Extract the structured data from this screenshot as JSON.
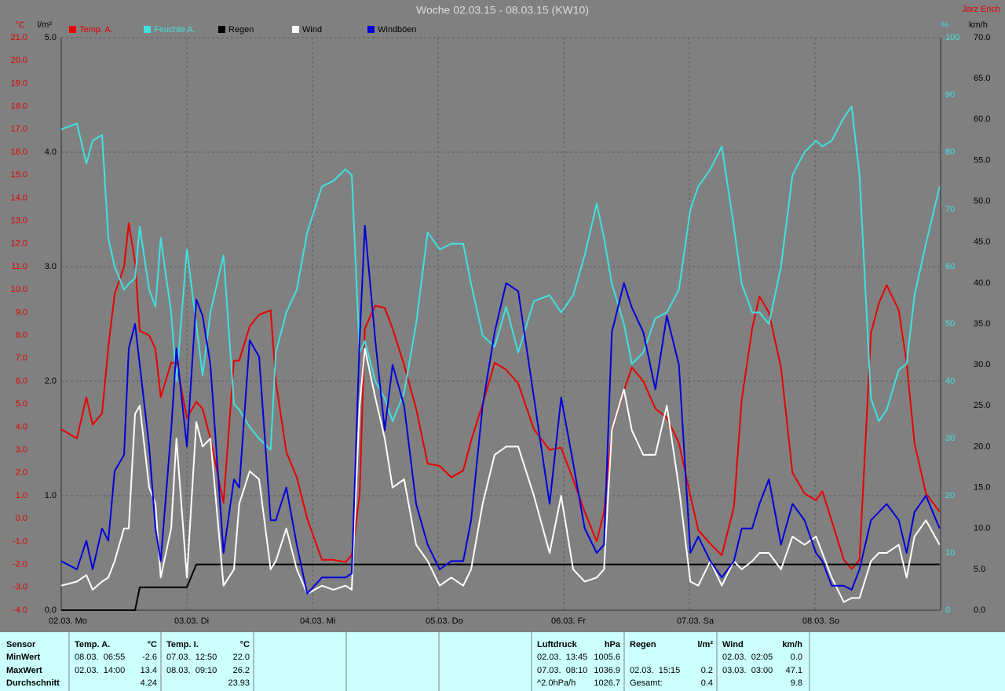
{
  "chart_data": {
    "type": "line",
    "title": "Woche 02.03.15 - 08.03.15 (KW10)",
    "annotation": "Jarz Erich",
    "ylabel": "°C",
    "y2label": "km/h",
    "y3label": "%",
    "y4label": "l/m²",
    "grid": true,
    "xlim": [
      0,
      168
    ],
    "xticks": [
      {
        "value": 0,
        "label": "02.03. Mo"
      },
      {
        "value": 24,
        "label": "03.03. Di"
      },
      {
        "value": 48,
        "label": "04.03. Mi"
      },
      {
        "value": 72,
        "label": "05.03. Do"
      },
      {
        "value": 96,
        "label": "06.03. Fr"
      },
      {
        "value": 120,
        "label": "07.03. Sa"
      },
      {
        "value": 144,
        "label": "08.03. So"
      }
    ],
    "ylim": [
      -4,
      21
    ],
    "yticks": [
      {
        "value": -4,
        "label": "-4.0"
      },
      {
        "value": -3,
        "label": "-3.0"
      },
      {
        "value": -2,
        "label": "-2.0"
      },
      {
        "value": -1,
        "label": "-1.0"
      },
      {
        "value": 0,
        "label": "0.0"
      },
      {
        "value": 1,
        "label": "1.0"
      },
      {
        "value": 2,
        "label": "2.0"
      },
      {
        "value": 3,
        "label": "3.0"
      },
      {
        "value": 4,
        "label": "4.0"
      },
      {
        "value": 5,
        "label": "5.0"
      },
      {
        "value": 6,
        "label": "6.0"
      },
      {
        "value": 7,
        "label": "7.0"
      },
      {
        "value": 8,
        "label": "8.0"
      },
      {
        "value": 9,
        "label": "9.0"
      },
      {
        "value": 10,
        "label": "10.0"
      },
      {
        "value": 11,
        "label": "11.0"
      },
      {
        "value": 12,
        "label": "12.0"
      },
      {
        "value": 13,
        "label": "13.0"
      },
      {
        "value": 14,
        "label": "14.0"
      },
      {
        "value": 15,
        "label": "15.0"
      },
      {
        "value": 16,
        "label": "16.0"
      },
      {
        "value": 17,
        "label": "17.0"
      },
      {
        "value": 18,
        "label": "18.0"
      },
      {
        "value": 19,
        "label": "19.0"
      },
      {
        "value": 20,
        "label": "20.0"
      },
      {
        "value": 21,
        "label": "21.0"
      }
    ],
    "y4lim": [
      0,
      5
    ],
    "y4ticks": [
      {
        "value": 0,
        "label": "0.0"
      },
      {
        "value": 1,
        "label": "1.0"
      },
      {
        "value": 2,
        "label": "2.0"
      },
      {
        "value": 3,
        "label": "3.0"
      },
      {
        "value": 4,
        "label": "4.0"
      },
      {
        "value": 5,
        "label": "5.0"
      }
    ],
    "y3lim": [
      0,
      100
    ],
    "y3ticks": [
      0,
      10,
      20,
      30,
      40,
      50,
      60,
      70,
      80,
      90,
      100
    ],
    "y2lim": [
      0,
      70
    ],
    "y2ticks": [
      {
        "value": 0,
        "label": "0.0"
      },
      {
        "value": 5,
        "label": "5.0"
      },
      {
        "value": 10,
        "label": "10.0"
      },
      {
        "value": 15,
        "label": "15.0"
      },
      {
        "value": 20,
        "label": "20.0"
      },
      {
        "value": 25,
        "label": "25.0"
      },
      {
        "value": 30,
        "label": "30.0"
      },
      {
        "value": 35,
        "label": "35.0"
      },
      {
        "value": 40,
        "label": "40.0"
      },
      {
        "value": 45,
        "label": "45.0"
      },
      {
        "value": 50,
        "label": "50.0"
      },
      {
        "value": 55,
        "label": "55.0"
      },
      {
        "value": 60,
        "label": "60.0"
      },
      {
        "value": 65,
        "label": "65.0"
      },
      {
        "value": 70,
        "label": "70.0"
      }
    ],
    "x": [
      0,
      3,
      4.8,
      6,
      7.8,
      9,
      10.2,
      12,
      12.9,
      14.1,
      15,
      16.8,
      18,
      19,
      21,
      22,
      24,
      25.8,
      27,
      28.5,
      31,
      33,
      34,
      36,
      37.8,
      40,
      41,
      43,
      45,
      47,
      49.8,
      52,
      54.3,
      55.5,
      57,
      58,
      60,
      61.8,
      63.3,
      65.5,
      67.8,
      70,
      72.3,
      74.5,
      76.8,
      78.3,
      80.5,
      82.8,
      85,
      87.3,
      90.3,
      93.3,
      95.5,
      97.8,
      100,
      102.3,
      103.7,
      105.2,
      107.5,
      109,
      111.2,
      113.5,
      115.7,
      118,
      120.2,
      121.7,
      124,
      126.2,
      128.5,
      130,
      132,
      133.4,
      135.2,
      137.5,
      139.7,
      142,
      144.2,
      145.4,
      147.2,
      149.5,
      151,
      152.5,
      154.7,
      156.2,
      157.7,
      160,
      161.5,
      163,
      165.2,
      167.8
    ],
    "series": [
      {
        "name": "Temp. A.",
        "color": "#e80000",
        "axis": "y",
        "values": [
          3.9,
          3.5,
          5.3,
          4.1,
          4.6,
          7.5,
          9.8,
          11,
          12.9,
          11.2,
          8.2,
          8,
          7.4,
          5.3,
          6.8,
          6.8,
          4.4,
          5.1,
          4.8,
          3.5,
          0.7,
          6.9,
          6.9,
          8.4,
          8.9,
          9.1,
          6,
          2.9,
          1.8,
          0,
          -1.8,
          -1.8,
          -1.9,
          -1.6,
          1,
          8.3,
          9.3,
          9.2,
          8.3,
          6.7,
          4.8,
          2.4,
          2.3,
          1.8,
          2.1,
          3.4,
          5,
          6.8,
          6.5,
          5.9,
          3.9,
          3,
          3.1,
          1.7,
          0.3,
          -1,
          0.3,
          3.8,
          5.6,
          6.6,
          6,
          4.8,
          4.4,
          3.3,
          1,
          -0.5,
          -1.1,
          -1.6,
          0.5,
          5.2,
          8.3,
          9.7,
          9,
          6.6,
          2,
          1.1,
          0.8,
          1.2,
          -0.1,
          -1.8,
          -2.2,
          -1.8,
          8.1,
          9.4,
          10.2,
          9.1,
          6.8,
          3.3,
          1.1,
          0.3
        ]
      },
      {
        "name": "Feuchte A.",
        "color": "#40e0e0",
        "axis": "y3",
        "values": [
          84,
          85,
          78,
          82,
          83,
          65,
          60,
          56,
          57,
          58,
          67,
          56,
          53,
          65,
          52,
          40,
          63,
          50,
          41,
          52,
          62,
          36,
          35,
          32,
          30,
          28,
          45,
          52,
          56,
          66,
          74,
          75,
          77,
          76,
          45,
          47,
          40,
          37,
          33,
          38,
          50,
          66,
          63,
          64,
          64,
          57,
          48,
          46,
          53,
          45,
          54,
          55,
          52,
          55,
          62,
          71,
          65,
          57,
          50,
          43,
          45,
          51,
          52,
          56,
          70,
          74,
          77,
          81,
          67,
          57,
          52,
          52,
          50,
          60,
          76,
          80,
          82,
          81,
          82,
          86,
          88,
          76,
          37,
          33,
          35,
          42,
          43,
          55,
          64,
          74
        ]
      },
      {
        "name": "Regen",
        "color": "#000000",
        "axis": "y4",
        "values": [
          0,
          0,
          0,
          0,
          0,
          0,
          0,
          0,
          0,
          0,
          0.2,
          0.2,
          0.2,
          0.2,
          0.2,
          0.2,
          0.2,
          0.4,
          0.4,
          0.4,
          0.4,
          0.4,
          0.4,
          0.4,
          0.4,
          0.4,
          0.4,
          0.4,
          0.4,
          0.4,
          0.4,
          0.4,
          0.4,
          0.4,
          0.4,
          0.4,
          0.4,
          0.4,
          0.4,
          0.4,
          0.4,
          0.4,
          0.4,
          0.4,
          0.4,
          0.4,
          0.4,
          0.4,
          0.4,
          0.4,
          0.4,
          0.4,
          0.4,
          0.4,
          0.4,
          0.4,
          0.4,
          0.4,
          0.4,
          0.4,
          0.4,
          0.4,
          0.4,
          0.4,
          0.4,
          0.4,
          0.4,
          0.4,
          0.4,
          0.4,
          0.4,
          0.4,
          0.4,
          0.4,
          0.4,
          0.4,
          0.4,
          0.4,
          0.4,
          0.4,
          0.4,
          0.4,
          0.4,
          0.4,
          0.4,
          0.4,
          0.4,
          0.4,
          0.4,
          0.4
        ]
      },
      {
        "name": "Wind",
        "color": "#ffffff",
        "axis": "y2",
        "values": [
          3,
          3.5,
          4.3,
          2.5,
          3.5,
          4,
          6,
          10,
          10,
          24,
          25,
          15,
          13,
          4,
          10,
          21,
          4,
          23,
          20,
          21,
          3,
          5,
          13,
          17,
          16,
          5,
          6,
          10,
          5,
          2,
          3,
          2.5,
          3,
          2.5,
          25,
          32,
          26,
          21,
          15,
          16,
          8,
          6,
          3,
          4,
          3,
          5,
          13,
          19,
          20,
          20,
          14,
          7,
          14,
          5,
          3.5,
          4,
          5,
          22,
          27,
          22,
          19,
          19,
          25,
          15,
          3.5,
          3,
          6,
          3,
          6,
          5,
          6,
          7,
          7,
          5,
          9,
          8,
          9,
          7,
          4,
          1,
          1.5,
          1.5,
          6,
          7,
          7,
          8,
          4,
          9,
          11,
          8
        ]
      },
      {
        "name": "Windböen",
        "color": "#0000dd",
        "axis": "y2",
        "values": [
          6,
          5,
          8.5,
          5,
          10,
          8.5,
          17,
          19,
          32,
          35,
          30,
          20,
          10,
          6,
          22,
          32,
          20,
          38,
          36,
          30,
          7,
          16,
          15,
          33,
          31,
          11,
          11,
          15,
          8,
          2,
          4,
          4,
          4,
          4.5,
          33,
          47,
          33,
          22,
          30,
          25,
          13,
          8,
          5,
          6,
          6,
          11,
          25,
          34,
          40,
          39,
          26,
          13,
          26,
          18,
          10,
          7,
          8,
          34,
          40,
          37,
          34,
          27,
          36,
          30,
          7,
          9,
          6,
          4,
          6,
          10,
          10,
          13,
          16,
          8,
          13,
          11,
          7,
          6,
          3,
          3,
          2.5,
          5,
          11,
          12,
          13,
          11,
          7,
          12,
          14,
          10
        ]
      }
    ]
  },
  "stats": {
    "row_labels": [
      "Sensor",
      "MinWert",
      "MaxWert",
      "Durchschnitt"
    ],
    "columns": [
      {
        "title": "Temp. A.",
        "unit": "°C",
        "rows": [
          [
            "08.03.  06:55",
            "-2.6"
          ],
          [
            "02.03.  14:00",
            "13.4"
          ],
          [
            null,
            "4.24"
          ]
        ]
      },
      {
        "title": "Temp. I.",
        "unit": "°C",
        "rows": [
          [
            "07.03.  12:50",
            "22.0"
          ],
          [
            "08.03.  09:10",
            "26.2"
          ],
          [
            null,
            "23.93"
          ]
        ]
      },
      {
        "title": "Luftdruck",
        "unit": "hPa",
        "rows": [
          [
            "02.03.  13:45",
            "1005.6"
          ],
          [
            "07.03.  08:10",
            "1036.9"
          ],
          [
            "^2.0hPa/h",
            "1026.7"
          ]
        ]
      },
      {
        "title": "Regen",
        "unit": "l/m²",
        "rows": [
          [
            null,
            null
          ],
          [
            "02.03.  15:15",
            "0.2"
          ],
          [
            "Gesamt:",
            "0.4"
          ]
        ]
      },
      {
        "title": "Wind",
        "unit": "km/h",
        "rows": [
          [
            "02.03.  02:05",
            "0.0"
          ],
          [
            "03.03.  03:00",
            "47.1"
          ],
          [
            null,
            "9.8"
          ]
        ]
      }
    ]
  }
}
